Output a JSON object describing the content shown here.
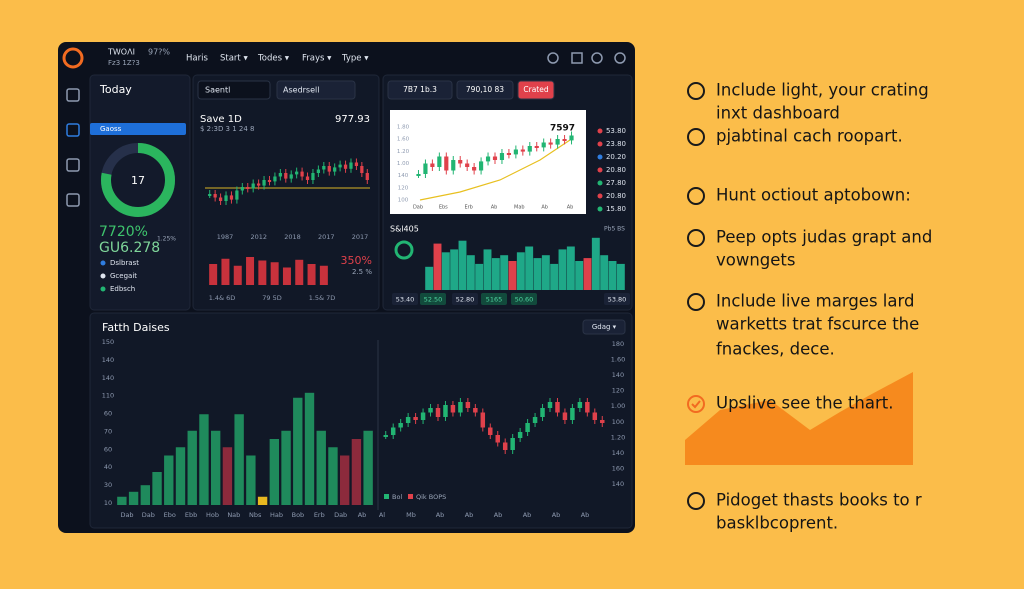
{
  "header": {
    "brand": "TWOΛI",
    "brand_value": "97?%",
    "sub": "Fz3 1Z?3",
    "menu": [
      "Haris",
      "Start ▾",
      "Todes ▾",
      "Frays ▾",
      "Type ▾"
    ]
  },
  "today": {
    "title": "Today",
    "button": "Gaoss",
    "donut_label": "17",
    "donut_percent": 78,
    "stat1": "7720%",
    "stat2": "GU6.278",
    "side_note": "1.25%",
    "legend": [
      "Dslbrast",
      "Gcegait",
      "Edbsch"
    ]
  },
  "trade": {
    "search": "Saentl",
    "field": "Asedrsell",
    "title": "Save 1D",
    "price": "977.93",
    "subline": "$ 2:3D  3 1 24 8",
    "candles": {
      "ylim": [
        0,
        100
      ],
      "closes": [
        30,
        25,
        20,
        28,
        22,
        35,
        40,
        38,
        45,
        42,
        50,
        48,
        55,
        60,
        52,
        58,
        62,
        55,
        50,
        60,
        65,
        70,
        62,
        68,
        72,
        66,
        75,
        70,
        60,
        50
      ],
      "xlabels": [
        "1987",
        "2012",
        "2018",
        "2017",
        "2017"
      ]
    },
    "bars": {
      "ylim": [
        0,
        100
      ],
      "values": [
        60,
        75,
        55,
        80,
        70,
        65,
        50,
        72,
        60,
        55
      ],
      "color": "#c8323c",
      "xlabels": [
        "1.4& 6D",
        "79 5D",
        "1.5& 7D"
      ]
    },
    "percent": "350%",
    "percent_sub": "2.5 %"
  },
  "market": {
    "buttons": [
      "7B7 1b.3",
      "790,10 83",
      "Crated"
    ],
    "chart_value": "7597",
    "candles": {
      "ylim": [
        0,
        100
      ],
      "closes": [
        30,
        45,
        40,
        55,
        35,
        50,
        45,
        40,
        35,
        48,
        55,
        50,
        60,
        58,
        65,
        62,
        70,
        68,
        75,
        72,
        80,
        78,
        85
      ],
      "yticks": [
        "1.80",
        "1.60",
        "1.20",
        "1.00",
        "140",
        "120",
        "100"
      ],
      "xlabels": [
        "Dab",
        "Ebs",
        "Erb",
        "Ab",
        "Mab",
        "Ab",
        "Ab"
      ]
    },
    "quotes": [
      {
        "text": "53.80",
        "color": "#e0414b"
      },
      {
        "text": "23.80",
        "color": "#e0414b"
      },
      {
        "text": "20.20",
        "color": "#2f7de0"
      },
      {
        "text": "20.80",
        "color": "#e0414b"
      },
      {
        "text": "27.80",
        "color": "#22b573"
      },
      {
        "text": "20.80",
        "color": "#e0414b"
      },
      {
        "text": "15.80",
        "color": "#22b573"
      }
    ],
    "hist_title": "S&l405",
    "hist_legend": "Pb5 BS",
    "hist": {
      "ylim": [
        0,
        100
      ],
      "values": [
        40,
        80,
        65,
        70,
        85,
        60,
        45,
        70,
        55,
        60,
        50,
        65,
        75,
        55,
        60,
        45,
        70,
        75,
        50,
        55,
        90,
        60,
        50,
        45
      ],
      "colors": [
        "#1fa888",
        "#e0414b",
        "#1fa888",
        "#1fa888",
        "#1fa888",
        "#1fa888",
        "#1fa888",
        "#1fa888",
        "#1fa888",
        "#1fa888",
        "#e0414b",
        "#1fa888",
        "#1fa888",
        "#1fa888",
        "#1fa888",
        "#1fa888",
        "#1fa888",
        "#1fa888",
        "#1fa888",
        "#e0414b",
        "#1fa888",
        "#1fa888",
        "#1fa888",
        "#1fa888"
      ]
    },
    "chips": [
      {
        "text": "53.40",
        "active": false
      },
      {
        "text": "52.50",
        "active": true
      },
      {
        "text": "52.80",
        "active": false
      },
      {
        "text": "5165",
        "active": true
      },
      {
        "text": "50.60",
        "active": true
      },
      {
        "text": "53.80",
        "active": false
      }
    ]
  },
  "bottom": {
    "title": "Fatth Daises",
    "dropdown": "Gdag ▾",
    "bars": {
      "ylim": [
        0,
        100
      ],
      "values": [
        5,
        8,
        12,
        20,
        30,
        35,
        45,
        55,
        45,
        35,
        55,
        30,
        5,
        40,
        45,
        65,
        68,
        45,
        35,
        30,
        40,
        45
      ],
      "colors": [
        "#1f8a5c",
        "#1f8a5c",
        "#1f8a5c",
        "#1f8a5c",
        "#1f8a5c",
        "#1f8a5c",
        "#1f8a5c",
        "#1f8a5c",
        "#1f8a5c",
        "#8c2a3c",
        "#1f8a5c",
        "#1f8a5c",
        "#e8b820",
        "#1f8a5c",
        "#1f8a5c",
        "#1f8a5c",
        "#1f8a5c",
        "#1f8a5c",
        "#1f8a5c",
        "#8c2a3c",
        "#8c2a3c",
        "#1f8a5c"
      ],
      "yticks": [
        "150",
        "140",
        "140",
        "110",
        "60",
        "70",
        "60",
        "40",
        "30",
        "10"
      ],
      "xlabels": [
        "Dab",
        "Dab",
        "Ebo",
        "Ebb",
        "Hob",
        "Nab",
        "Nbs",
        "Hab",
        "Bob",
        "Erb",
        "Dab",
        "Ab"
      ]
    },
    "candles": {
      "ylim": [
        0,
        100
      ],
      "closes": [
        40,
        45,
        48,
        52,
        50,
        55,
        58,
        52,
        60,
        55,
        62,
        58,
        55,
        45,
        40,
        35,
        30,
        38,
        42,
        48,
        52,
        58,
        62,
        55,
        50,
        58,
        62,
        55,
        50,
        48
      ],
      "yticks": [
        "180",
        "1.60",
        "140",
        "120",
        "1.00",
        "100",
        "1.20",
        "140",
        "160",
        "140"
      ],
      "xlabels": [
        "Al",
        "Mb",
        "Ab",
        "Ab",
        "Ab",
        "Ab",
        "Ab",
        "Ab"
      ]
    },
    "legend": [
      "Bol",
      "Qik BOPS"
    ]
  },
  "list": [
    {
      "lines": [
        "Include light, your crating",
        "inxt dashboard"
      ],
      "checked": false
    },
    {
      "lines": [
        "pjabtinal cach roopart."
      ],
      "checked": false
    },
    {
      "lines": [
        "Hunt octiout aptobown:"
      ],
      "checked": false
    },
    {
      "lines": [
        "Peep opts judas grapt and",
        "vowngets"
      ],
      "checked": false
    },
    {
      "lines": [
        "Include live marges lard",
        "warketts trat fscurce the",
        "fnackes, dece."
      ],
      "checked": false
    },
    {
      "lines": [
        "Upslive see the thart."
      ],
      "checked": true
    },
    {
      "lines": [
        "Pidoget thasts books to r",
        "basklbcoprent."
      ],
      "checked": false
    }
  ]
}
